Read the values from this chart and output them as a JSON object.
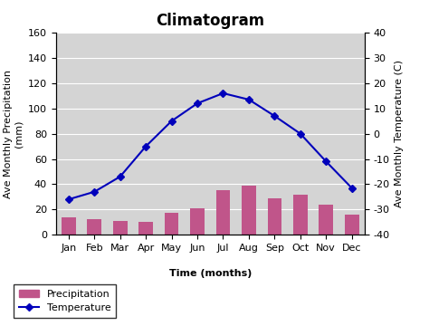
{
  "title": "Climatogram",
  "months": [
    "Jan",
    "Feb",
    "Mar",
    "Apr",
    "May",
    "Jun",
    "Jul",
    "Aug",
    "Sep",
    "Oct",
    "Nov",
    "Dec"
  ],
  "precipitation": [
    14,
    12,
    11,
    10,
    17,
    21,
    35,
    39,
    29,
    32,
    24,
    16
  ],
  "temperature": [
    -26,
    -23,
    -17,
    -5,
    5,
    12,
    16,
    13.5,
    7,
    0,
    -11,
    -21.5
  ],
  "bar_color": "#c0558a",
  "line_color": "#0000bb",
  "marker_color": "#0000bb",
  "background_color": "#d4d4d4",
  "fig_background": "#ffffff",
  "ylim_left": [
    0,
    160
  ],
  "ylim_right": [
    -40,
    40
  ],
  "yticks_left": [
    0,
    20,
    40,
    60,
    80,
    100,
    120,
    140,
    160
  ],
  "yticks_right": [
    -40,
    -30,
    -20,
    -10,
    0,
    10,
    20,
    30,
    40
  ],
  "xlabel": "Time (months)",
  "ylabel_left": "Ave Monthly Precipitation\n(mm)",
  "ylabel_right": "Ave Monthly Temperature (C)",
  "legend_precip": "Precipitation",
  "legend_temp": "Temperature",
  "title_fontsize": 12,
  "label_fontsize": 8,
  "tick_fontsize": 8,
  "bar_width": 0.55
}
